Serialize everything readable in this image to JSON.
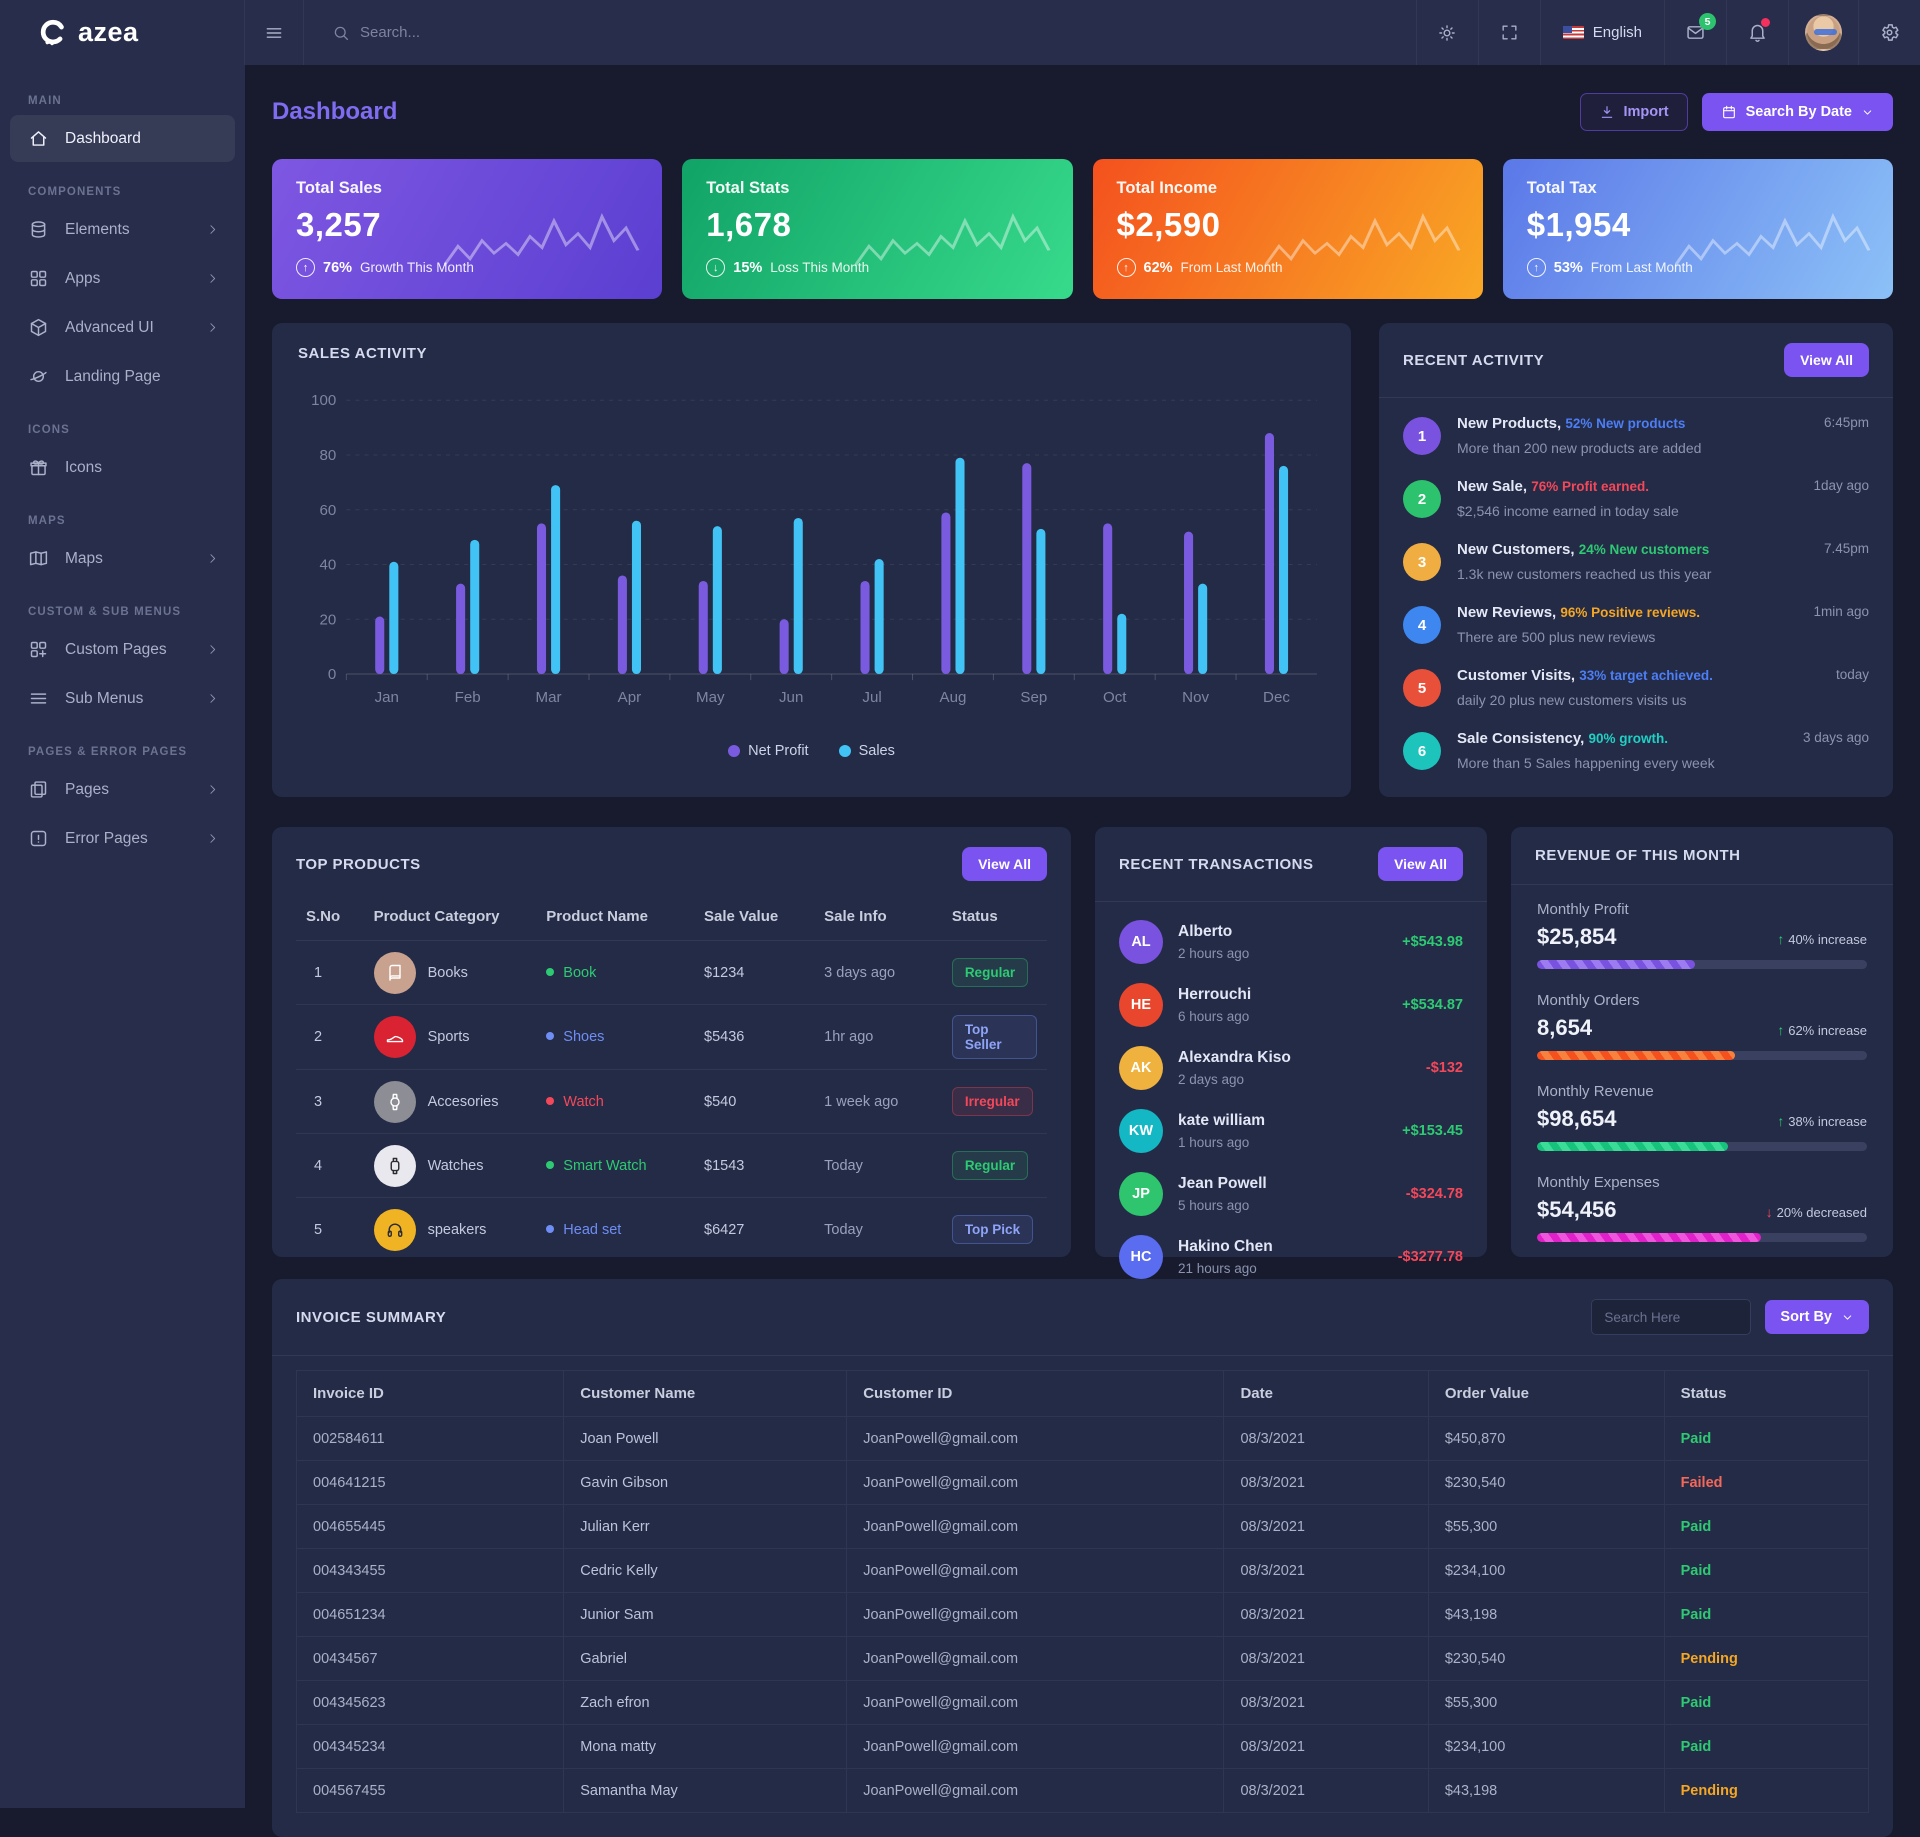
{
  "topbar": {
    "brand": "azea",
    "search_placeholder": "Search...",
    "language": "English",
    "mail_badge": "5"
  },
  "sidebar": {
    "sections": [
      {
        "label": "MAIN",
        "items": [
          {
            "label": "Dashboard",
            "icon": "home-icon",
            "active": true,
            "chevron": false
          }
        ]
      },
      {
        "label": "COMPONENTS",
        "items": [
          {
            "label": "Elements",
            "icon": "elements-icon",
            "chevron": true
          },
          {
            "label": "Apps",
            "icon": "apps-icon",
            "chevron": true
          },
          {
            "label": "Advanced UI",
            "icon": "advanced-ui-icon",
            "chevron": true
          },
          {
            "label": "Landing Page",
            "icon": "landing-page-icon",
            "chevron": false
          }
        ]
      },
      {
        "label": "ICONS",
        "items": [
          {
            "label": "Icons",
            "icon": "icons-icon",
            "chevron": false
          }
        ]
      },
      {
        "label": "MAPS",
        "items": [
          {
            "label": "Maps",
            "icon": "maps-icon",
            "chevron": true
          }
        ]
      },
      {
        "label": "CUSTOM & SUB MENUS",
        "items": [
          {
            "label": "Custom Pages",
            "icon": "custom-pages-icon",
            "chevron": true
          },
          {
            "label": "Sub Menus",
            "icon": "sub-menus-icon",
            "chevron": true
          }
        ]
      },
      {
        "label": "PAGES & ERROR PAGES",
        "items": [
          {
            "label": "Pages",
            "icon": "pages-icon",
            "chevron": true
          },
          {
            "label": "Error Pages",
            "icon": "error-pages-icon",
            "chevron": true
          }
        ]
      }
    ]
  },
  "page": {
    "title": "Dashboard",
    "import_label": "Import",
    "search_by_date_label": "Search By Date"
  },
  "stat_cards": [
    {
      "label": "Total Sales",
      "value": "3,257",
      "percent": "76%",
      "note": "Growth This Month",
      "direction": "up",
      "gradient": [
        "#7e57e2",
        "#5b3fd1"
      ]
    },
    {
      "label": "Total Stats",
      "value": "1,678",
      "percent": "15%",
      "note": "Loss This Month",
      "direction": "down",
      "gradient": [
        "#11a367",
        "#37da8b"
      ]
    },
    {
      "label": "Total Income",
      "value": "$2,590",
      "percent": "62%",
      "note": "From Last Month",
      "direction": "up",
      "gradient": [
        "#f4511e",
        "#f9a825"
      ]
    },
    {
      "label": "Total Tax",
      "value": "$1,954",
      "percent": "53%",
      "note": "From Last Month",
      "direction": "up",
      "gradient": [
        "#5b78e8",
        "#8cc1f7"
      ]
    }
  ],
  "sales_activity": {
    "title": "SALES ACTIVITY",
    "chart_data": {
      "type": "bar",
      "categories": [
        "Jan",
        "Feb",
        "Mar",
        "Apr",
        "May",
        "Jun",
        "Jul",
        "Aug",
        "Sep",
        "Oct",
        "Nov",
        "Dec"
      ],
      "series": [
        {
          "name": "Net Profit",
          "color": "#7a5be0",
          "values": [
            21,
            33,
            55,
            36,
            34,
            20,
            34,
            59,
            77,
            55,
            52,
            88
          ]
        },
        {
          "name": "Sales",
          "color": "#41c3f5",
          "values": [
            41,
            49,
            69,
            56,
            54,
            57,
            42,
            79,
            53,
            22,
            33,
            76
          ]
        }
      ],
      "ylim": [
        0,
        100
      ],
      "yticks": [
        0,
        20,
        40,
        60,
        80,
        100
      ],
      "grid": "dashed",
      "legend_position": "bottom"
    }
  },
  "recent_activity": {
    "title": "RECENT ACTIVITY",
    "view_all_label": "View All",
    "items": [
      {
        "num": "1",
        "color": "#7a52e0",
        "title": "New Products,",
        "highlight": "52% New products",
        "highlight_color": "#4c7ef5",
        "desc": "More than 200 new products are added",
        "time": "6:45pm"
      },
      {
        "num": "2",
        "color": "#2cc26e",
        "title": "New Sale,",
        "highlight": "76% Profit earned.",
        "highlight_color": "#f4485a",
        "desc": "$2,546 income earned in today sale",
        "time": "1day ago"
      },
      {
        "num": "3",
        "color": "#f0ad42",
        "title": "New Customers,",
        "highlight": "24% New customers",
        "highlight_color": "#2dca73",
        "desc": "1.3k new customers reached us this year",
        "time": "7.45pm"
      },
      {
        "num": "4",
        "color": "#3e86f0",
        "title": "New Reviews,",
        "highlight": "96% Positive reviews.",
        "highlight_color": "#f5a623",
        "desc": "There are 500 plus new reviews",
        "time": "1min ago"
      },
      {
        "num": "5",
        "color": "#e8503a",
        "title": "Customer Visits,",
        "highlight": "33% target achieved.",
        "highlight_color": "#4c7ef5",
        "desc": "daily 20 plus new customers visits us",
        "time": "today"
      },
      {
        "num": "6",
        "color": "#1cc4bc",
        "title": "Sale Consistency,",
        "highlight": "90% growth.",
        "highlight_color": "#1fd0c4",
        "desc": "More than 5 Sales happening every week",
        "time": "3 days ago"
      }
    ]
  },
  "top_products": {
    "title": "TOP PRODUCTS",
    "view_all_label": "View All",
    "headers": [
      "S.No",
      "Product Category",
      "Product Name",
      "Sale Value",
      "Sale Info",
      "Status"
    ],
    "rows": [
      {
        "sno": "1",
        "category": "Books",
        "image_icon": "book-image",
        "image_bg": "#c9a18f",
        "image_fg": "#ffffff",
        "product": "Book",
        "product_color": "#2dca73",
        "value": "$1234",
        "info": "3 days ago",
        "status": "Regular",
        "status_type": "green"
      },
      {
        "sno": "2",
        "category": "Sports",
        "image_icon": "shoe-image",
        "image_bg": "#d92332",
        "image_fg": "#ffffff",
        "product": "Shoes",
        "product_color": "#6e8df5",
        "value": "$5436",
        "info": "1hr ago",
        "status": "Top Seller",
        "status_type": "blue"
      },
      {
        "sno": "3",
        "category": "Accesories",
        "image_icon": "watch-image",
        "image_bg": "#8d8d95",
        "image_fg": "#ffffff",
        "product": "Watch",
        "product_color": "#f4485a",
        "value": "$540",
        "info": "1 week ago",
        "status": "Irregular",
        "status_type": "red"
      },
      {
        "sno": "4",
        "category": "Watches",
        "image_icon": "smartwatch-image",
        "image_bg": "#e8e8ee",
        "image_fg": "#2b2b33",
        "product": "Smart Watch",
        "product_color": "#2dca73",
        "value": "$1543",
        "info": "Today",
        "status": "Regular",
        "status_type": "green"
      },
      {
        "sno": "5",
        "category": "speakers",
        "image_icon": "headset-image",
        "image_bg": "#f0b323",
        "image_fg": "#2b2b33",
        "product": "Head set",
        "product_color": "#6e8df5",
        "value": "$6427",
        "info": "Today",
        "status": "Top Pick",
        "status_type": "blue"
      }
    ]
  },
  "recent_transactions": {
    "title": "RECENT TRANSACTIONS",
    "view_all_label": "View All",
    "items": [
      {
        "initials": "AL",
        "color": "#7a52e0",
        "name": "Alberto",
        "time": "2 hours ago",
        "amount": "+$543.98",
        "amount_type": "pos"
      },
      {
        "initials": "HE",
        "color": "#e8472e",
        "name": "Herrouchi",
        "time": "6 hours ago",
        "amount": "+$534.87",
        "amount_type": "pos"
      },
      {
        "initials": "AK",
        "color": "#f0b23e",
        "name": "Alexandra Kiso",
        "time": "2 days ago",
        "amount": "-$132",
        "amount_type": "neg"
      },
      {
        "initials": "KW",
        "color": "#14b8c4",
        "name": "kate william",
        "time": "1 hours ago",
        "amount": "+$153.45",
        "amount_type": "pos"
      },
      {
        "initials": "JP",
        "color": "#2fc56f",
        "name": "Jean Powell",
        "time": "5 hours ago",
        "amount": "-$324.78",
        "amount_type": "neg"
      },
      {
        "initials": "HC",
        "color": "#5a6cf0",
        "name": "Hakino Chen",
        "time": "21 hours ago",
        "amount": "-$3277.78",
        "amount_type": "neg"
      }
    ]
  },
  "revenue": {
    "title": "REVENUE OF THIS MONTH",
    "metrics": [
      {
        "label": "Monthly Profit",
        "value": "$25,854",
        "change": "40% increase",
        "direction": "up",
        "bar_percent": 48,
        "bar_colors": [
          "#7a52e0",
          "#9d7bf0"
        ]
      },
      {
        "label": "Monthly Orders",
        "value": "8,654",
        "change": "62% increase",
        "direction": "up",
        "bar_percent": 60,
        "bar_colors": [
          "#f4511e",
          "#f9813f"
        ]
      },
      {
        "label": "Monthly Revenue",
        "value": "$98,654",
        "change": "38% increase",
        "direction": "up",
        "bar_percent": 58,
        "bar_colors": [
          "#17c27d",
          "#3bdc97"
        ]
      },
      {
        "label": "Monthly Expenses",
        "value": "$54,456",
        "change": "20% decreased",
        "direction": "down",
        "bar_percent": 68,
        "bar_colors": [
          "#e020c8",
          "#f055dd"
        ]
      }
    ]
  },
  "invoice_summary": {
    "title": "INVOICE SUMMARY",
    "search_placeholder": "Search Here",
    "sort_by_label": "Sort By",
    "headers": [
      "Invoice ID",
      "Customer Name",
      "Customer ID",
      "Date",
      "Order Value",
      "Status"
    ],
    "rows": [
      [
        "002584611",
        "Joan Powell",
        "JoanPowell@gmail.com",
        "08/3/2021",
        "$450,870",
        "Paid"
      ],
      [
        "004641215",
        "Gavin Gibson",
        "JoanPowell@gmail.com",
        "08/3/2021",
        "$230,540",
        "Failed"
      ],
      [
        "004655445",
        "Julian Kerr",
        "JoanPowell@gmail.com",
        "08/3/2021",
        "$55,300",
        "Paid"
      ],
      [
        "004343455",
        "Cedric Kelly",
        "JoanPowell@gmail.com",
        "08/3/2021",
        "$234,100",
        "Paid"
      ],
      [
        "004651234",
        "Junior Sam",
        "JoanPowell@gmail.com",
        "08/3/2021",
        "$43,198",
        "Paid"
      ],
      [
        "00434567",
        "Gabriel",
        "JoanPowell@gmail.com",
        "08/3/2021",
        "$230,540",
        "Pending"
      ],
      [
        "004345623",
        "Zach efron",
        "JoanPowell@gmail.com",
        "08/3/2021",
        "$55,300",
        "Paid"
      ],
      [
        "004345234",
        "Mona matty",
        "JoanPowell@gmail.com",
        "08/3/2021",
        "$234,100",
        "Paid"
      ],
      [
        "004567455",
        "Samantha May",
        "JoanPowell@gmail.com",
        "08/3/2021",
        "$43,198",
        "Pending"
      ]
    ],
    "status_colors": {
      "Paid": "#2dca73",
      "Failed": "#f4685a",
      "Pending": "#f5a623"
    }
  }
}
